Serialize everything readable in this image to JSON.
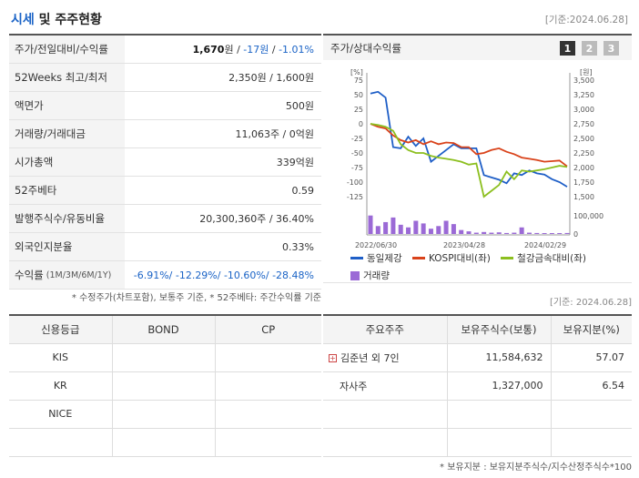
{
  "header": {
    "title_highlight": "시세",
    "title_rest": " 및 주주현황",
    "date": "[기준:2024.06.28]"
  },
  "summary": {
    "rows": [
      {
        "label": "주가/전일대비/수익률",
        "price": "1,670",
        "price_unit": "원",
        "sep1": " / ",
        "change": "-17원",
        "sep2": " / ",
        "rate": "-1.01%"
      },
      {
        "label": "52Weeks 최고/최저",
        "value": "2,350원 / 1,600원"
      },
      {
        "label": "액면가",
        "value": "500원"
      },
      {
        "label": "거래량/거래대금",
        "value": "11,063주 / 0억원"
      },
      {
        "label": "시가총액",
        "value": "339억원"
      },
      {
        "label": "52주베타",
        "value": "0.59"
      },
      {
        "label": "발행주식수/유동비율",
        "value": "20,300,360주 / 36.40%"
      },
      {
        "label": "외국인지분율",
        "value": "0.33%"
      },
      {
        "label": "수익률",
        "label_sub": "(1M/3M/6M/1Y)",
        "value": "-6.91%/ -12.29%/ -10.60%/ -28.48%"
      }
    ],
    "note": "* 수정주가(차트포함), 보통주 기준, * 52주베타: 주간수익률 기준"
  },
  "chart_panel": {
    "title": "주가/상대수익률",
    "tabs": [
      "1",
      "2",
      "3"
    ],
    "active_tab": "1",
    "note": "[기준: 2024.06.28]"
  },
  "chart_data": {
    "type": "line",
    "left_axis_unit": "[%]",
    "right_axis_unit": "[원]",
    "left_ticks": [
      "75",
      "50",
      "25",
      "0",
      "-25",
      "-50",
      "-75",
      "-100",
      "-125"
    ],
    "right_ticks": [
      "3,500",
      "3,250",
      "3,000",
      "2,750",
      "2,500",
      "2,250",
      "2,000",
      "1,750",
      "1,500"
    ],
    "volume_ticks": [
      "100,000",
      "0"
    ],
    "x_labels": [
      "2022/06/30",
      "2023/04/28",
      "2024/02/29"
    ],
    "ylim_left": [
      -125,
      75
    ],
    "series": [
      {
        "name": "동일제강",
        "color": "#1f5fc7",
        "values": [
          52,
          55,
          45,
          -40,
          -42,
          -22,
          -38,
          -25,
          -65,
          -55,
          -45,
          -35,
          -42,
          -42,
          -42,
          -88,
          -92,
          -96,
          -102,
          -85,
          -88,
          -80,
          -85,
          -87,
          -95,
          -100,
          -108
        ]
      },
      {
        "name": "KOSPI대비(좌)",
        "color": "#d9431b",
        "values": [
          0,
          -5,
          -8,
          -20,
          -28,
          -32,
          -28,
          -35,
          -30,
          -35,
          -32,
          -33,
          -40,
          -40,
          -52,
          -50,
          -45,
          -42,
          -48,
          -52,
          -58,
          -60,
          -62,
          -65,
          -64,
          -63,
          -73
        ]
      },
      {
        "name": "철강금속대비(좌)",
        "color": "#8cbf1f",
        "values": [
          0,
          -2,
          -5,
          -12,
          -35,
          -45,
          -50,
          -50,
          -55,
          -58,
          -60,
          -62,
          -65,
          -70,
          -68,
          -125,
          -115,
          -105,
          -82,
          -95,
          -80,
          -82,
          -80,
          -78,
          -75,
          -72,
          -74
        ]
      }
    ],
    "volume": {
      "name": "거래량",
      "color": "#9b6ad6",
      "values": [
        28000,
        12000,
        18000,
        25000,
        14000,
        10000,
        20000,
        16000,
        8000,
        12000,
        20000,
        15000,
        6000,
        4000,
        2000,
        3000,
        2000,
        2500,
        1500,
        2000,
        10000,
        2000,
        1500,
        1000,
        1200,
        1000,
        1500
      ]
    }
  },
  "credit": {
    "headers": [
      "신용등급",
      "BOND",
      "CP"
    ],
    "rows": [
      {
        "agency": "KIS",
        "bond": "",
        "cp": ""
      },
      {
        "agency": "KR",
        "bond": "",
        "cp": ""
      },
      {
        "agency": "NICE",
        "bond": "",
        "cp": ""
      },
      {
        "agency": "",
        "bond": "",
        "cp": ""
      }
    ]
  },
  "holders": {
    "headers": [
      "주요주주",
      "보유주식수(보통)",
      "보유지분(%)"
    ],
    "rows": [
      {
        "name": "김준년 외 7인",
        "shares": "11,584,632",
        "pct": "57.07",
        "expandable": true
      },
      {
        "name": "자사주",
        "shares": "1,327,000",
        "pct": "6.54",
        "expandable": false
      },
      {
        "name": "",
        "shares": "",
        "pct": "",
        "expandable": false
      },
      {
        "name": "",
        "shares": "",
        "pct": "",
        "expandable": false
      }
    ],
    "note": "* 보유지분 : 보유지분주식수/지수산정주식수*100"
  }
}
